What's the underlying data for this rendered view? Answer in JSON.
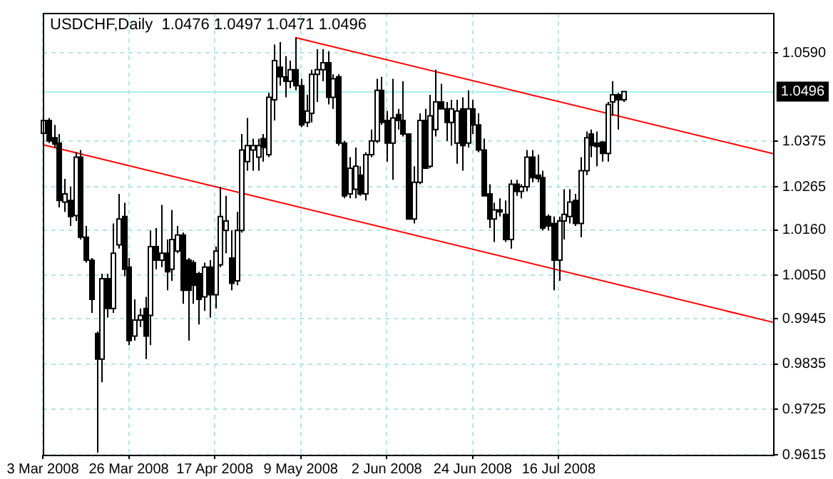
{
  "chart_data": {
    "type": "candlestick",
    "title": "USDCHF,Daily  1.0476 1.0497 1.0471 1.0496",
    "categories": [
      "3 Mar 2008",
      null,
      null,
      null,
      null,
      null,
      null,
      null,
      null,
      null,
      null,
      null,
      null,
      null,
      null,
      null,
      "26 Mar 2008",
      null,
      null,
      null,
      null,
      null,
      null,
      null,
      null,
      null,
      null,
      null,
      null,
      null,
      null,
      null,
      "17 Apr 2008",
      null,
      null,
      null,
      null,
      null,
      null,
      null,
      null,
      null,
      null,
      null,
      null,
      null,
      null,
      null,
      "9 May 2008",
      null,
      null,
      null,
      null,
      null,
      null,
      null,
      null,
      null,
      null,
      null,
      null,
      null,
      null,
      null,
      "2 Jun 2008",
      null,
      null,
      null,
      null,
      null,
      null,
      null,
      null,
      null,
      null,
      null,
      null,
      null,
      null,
      null,
      "24 Jun 2008",
      null,
      null,
      null,
      null,
      null,
      null,
      null,
      null,
      null,
      null,
      null,
      null,
      null,
      null,
      null,
      "16 Jul 2008",
      null,
      null,
      null,
      null,
      null,
      null,
      null,
      null,
      null,
      null,
      null,
      null,
      null,
      null,
      null,
      null,
      null,
      null,
      null,
      null,
      null,
      null,
      null,
      null,
      null,
      null,
      null,
      null,
      null,
      null,
      null,
      null,
      null,
      null,
      null,
      null,
      null,
      null,
      null,
      null
    ],
    "ohlc": [
      [
        1.0395,
        1.046,
        1.031,
        1.0426
      ],
      [
        1.0426,
        1.0432,
        1.0371,
        1.0376
      ],
      [
        1.0384,
        1.0415,
        1.036,
        1.0369
      ],
      [
        1.0371,
        1.0393,
        1.0215,
        1.0232
      ],
      [
        1.0228,
        1.0284,
        1.0204,
        1.0248
      ],
      [
        1.0232,
        1.0265,
        1.017,
        1.0193
      ],
      [
        1.0195,
        1.0349,
        1.0182,
        1.0337
      ],
      [
        1.0337,
        1.0354,
        1.0137,
        1.0143
      ],
      [
        1.0143,
        1.017,
        1.0081,
        1.0087
      ],
      [
        1.0087,
        1.0092,
        0.9959,
        0.9992
      ],
      [
        0.9909,
        0.9914,
        0.962,
        0.9847
      ],
      [
        0.9847,
        1.0054,
        0.9791,
        1.0042
      ],
      [
        1.0042,
        1.0054,
        0.9948,
        0.997
      ],
      [
        0.997,
        1.0176,
        0.9959,
        1.0104
      ],
      [
        1.0124,
        1.0248,
        1.0115,
        1.0187
      ],
      [
        1.0193,
        1.0226,
        1.0048,
        1.0065
      ],
      [
        1.007,
        1.0092,
        0.9881,
        0.9892
      ],
      [
        0.9903,
        0.9992,
        0.9892,
        0.9942
      ],
      [
        0.9942,
        0.997,
        0.9925,
        0.9953
      ],
      [
        0.997,
        0.9998,
        0.9847,
        0.9903
      ],
      [
        0.9953,
        1.0159,
        0.9881,
        1.012
      ],
      [
        1.012,
        1.0165,
        1.0065,
        1.0087
      ],
      [
        1.0087,
        1.0221,
        1.007,
        1.0104
      ],
      [
        1.0104,
        1.0137,
        1.0014,
        1.0059
      ],
      [
        1.0065,
        1.0209,
        1.0037,
        1.0137
      ],
      [
        1.0109,
        1.017,
        1.0104,
        1.0148
      ],
      [
        1.0148,
        1.0154,
        0.9981,
        1.0014
      ],
      [
        1.0087,
        1.0092,
        0.9892,
        1.0014
      ],
      [
        1.0081,
        1.0087,
        0.9981,
        1.0026
      ],
      [
        1.0054,
        1.0059,
        0.9931,
        0.9992
      ],
      [
        0.9998,
        1.0081,
        0.9964,
        1.007
      ],
      [
        1.007,
        1.0087,
        0.9948,
        1.0003
      ],
      [
        1.0003,
        1.012,
        0.997,
        1.0109
      ],
      [
        1.0076,
        1.0265,
        1.007,
        1.0193
      ],
      [
        1.0159,
        1.0243,
        1.0104,
        1.0182
      ],
      [
        1.0092,
        1.0159,
        1.0014,
        1.0031
      ],
      [
        1.0037,
        1.0204,
        1.0026,
        1.0159
      ],
      [
        1.0159,
        1.0393,
        1.0154,
        1.0354
      ],
      [
        1.0326,
        1.0432,
        1.0304,
        1.0365
      ],
      [
        1.0354,
        1.0382,
        1.0304,
        1.0365
      ],
      [
        1.0337,
        1.0382,
        1.0304,
        1.0365
      ],
      [
        1.0382,
        1.0393,
        1.0326,
        1.036
      ],
      [
        1.0343,
        1.0493,
        1.0337,
        1.0482
      ],
      [
        1.0476,
        1.061,
        1.0426,
        1.0571
      ],
      [
        1.0555,
        1.0616,
        1.051,
        1.0532
      ],
      [
        1.0532,
        1.0582,
        1.0482,
        1.0521
      ],
      [
        1.0521,
        1.0571,
        1.0504,
        1.0549
      ],
      [
        1.0549,
        1.0627,
        1.0499,
        1.051
      ],
      [
        1.051,
        1.0527,
        1.041,
        1.0415
      ],
      [
        1.0421,
        1.0488,
        1.041,
        1.0449
      ],
      [
        1.0443,
        1.0549,
        1.0421,
        1.0538
      ],
      [
        1.0538,
        1.0599,
        1.0471,
        1.0549
      ],
      [
        1.0549,
        1.0599,
        1.0521,
        1.0566
      ],
      [
        1.0566,
        1.0594,
        1.0465,
        1.0482
      ],
      [
        1.0482,
        1.0538,
        1.0454,
        1.0527
      ],
      [
        1.0532,
        1.0538,
        1.0365,
        1.0371
      ],
      [
        1.0371,
        1.0376,
        1.0237,
        1.0243
      ],
      [
        1.0248,
        1.0337,
        1.0237,
        1.031
      ],
      [
        1.0259,
        1.036,
        1.0237,
        1.0315
      ],
      [
        1.0293,
        1.0315,
        1.0243,
        1.0248
      ],
      [
        1.0248,
        1.0349,
        1.0232,
        1.0343
      ],
      [
        1.0343,
        1.0404,
        1.0337,
        1.0376
      ],
      [
        1.0376,
        1.0527,
        1.0371,
        1.0499
      ],
      [
        1.0499,
        1.0532,
        1.0415,
        1.0421
      ],
      [
        1.0426,
        1.0449,
        1.0326,
        1.0371
      ],
      [
        1.0371,
        1.0527,
        1.0282,
        1.0432
      ],
      [
        1.044,
        1.0454,
        1.0404,
        1.0426
      ],
      [
        1.0426,
        1.0521,
        1.0387,
        1.0393
      ],
      [
        1.0393,
        1.0393,
        1.0187,
        1.0187
      ],
      [
        1.0187,
        1.0315,
        1.0176,
        1.0276
      ],
      [
        1.0276,
        1.0443,
        1.0271,
        1.0426
      ],
      [
        1.0426,
        1.0454,
        1.031,
        1.031
      ],
      [
        1.0315,
        1.0488,
        1.031,
        1.0437
      ],
      [
        1.0404,
        1.0549,
        1.0387,
        1.0471
      ],
      [
        1.0471,
        1.0515,
        1.0454,
        1.0454
      ],
      [
        1.0454,
        1.0471,
        1.0376,
        1.0421
      ],
      [
        1.0421,
        1.0476,
        1.0365,
        1.0454
      ],
      [
        1.0371,
        1.0476,
        1.0321,
        1.0449
      ],
      [
        1.0454,
        1.0482,
        1.0304,
        1.0365
      ],
      [
        1.0371,
        1.0499,
        1.036,
        1.0454
      ],
      [
        1.0454,
        1.0476,
        1.0393,
        1.0415
      ],
      [
        1.0415,
        1.0443,
        1.0349,
        1.0354
      ],
      [
        1.0354,
        1.0382,
        1.0243,
        1.0243
      ],
      [
        1.0248,
        1.0271,
        1.0165,
        1.0187
      ],
      [
        1.0187,
        1.0226,
        1.0131,
        1.0209
      ],
      [
        1.0209,
        1.0237,
        1.0193,
        1.0204
      ],
      [
        1.0198,
        1.0232,
        1.0131,
        1.0137
      ],
      [
        1.0137,
        1.0282,
        1.0115,
        1.0271
      ],
      [
        1.0271,
        1.0282,
        1.0243,
        1.0254
      ],
      [
        1.0254,
        1.0271,
        1.0237,
        1.0265
      ],
      [
        1.0265,
        1.0354,
        1.0254,
        1.0337
      ],
      [
        1.0337,
        1.0354,
        1.0276,
        1.0287
      ],
      [
        1.0293,
        1.0343,
        1.0276,
        1.0285
      ],
      [
        1.0287,
        1.0304,
        1.0159,
        1.0165
      ],
      [
        1.0193,
        1.0198,
        1.0159,
        1.017
      ],
      [
        1.0176,
        1.0193,
        1.0014,
        1.0087
      ],
      [
        1.0087,
        1.0193,
        1.0037,
        1.0182
      ],
      [
        1.0182,
        1.0259,
        1.0137,
        1.0198
      ],
      [
        1.0193,
        1.0259,
        1.0176,
        1.0228
      ],
      [
        1.0232,
        1.0248,
        1.017,
        1.0176
      ],
      [
        1.0176,
        1.0337,
        1.0143,
        1.0304
      ],
      [
        1.0304,
        1.0399,
        1.0293,
        1.0384
      ],
      [
        1.0393,
        1.0404,
        1.0337,
        1.0365
      ],
      [
        1.0371,
        1.0399,
        1.0315,
        1.0363
      ],
      [
        1.0373,
        1.0376,
        1.0326,
        1.0346
      ],
      [
        1.0346,
        1.0471,
        1.0326,
        1.0465
      ],
      [
        1.0471,
        1.0521,
        1.0437,
        1.0488
      ],
      [
        1.0488,
        1.0493,
        1.0404,
        1.0476
      ],
      [
        1.0476,
        1.0497,
        1.0471,
        1.0496
      ],
      null,
      null,
      null,
      null,
      null,
      null,
      null,
      null,
      null,
      null,
      null,
      null,
      null,
      null,
      null,
      null,
      null,
      null,
      null,
      null,
      null,
      null,
      null,
      null,
      null,
      null,
      null,
      null
    ],
    "series": [
      {
        "type": "line",
        "color": "#ff0000",
        "values": [
          null,
          null,
          null,
          null,
          null,
          null,
          null,
          null,
          null,
          null,
          null,
          null,
          null,
          null,
          null,
          null,
          null,
          null,
          null,
          null,
          null,
          null,
          null,
          null,
          null,
          null,
          null,
          null,
          null,
          null,
          null,
          null,
          null,
          null,
          null,
          null,
          null,
          null,
          null,
          null,
          null,
          null,
          null,
          null,
          null,
          null,
          null,
          1.0627,
          null,
          null,
          null,
          null,
          null,
          null,
          null,
          null,
          null,
          null,
          null,
          null,
          null,
          null,
          null,
          null,
          null,
          null,
          null,
          null,
          null,
          null,
          null,
          null,
          null,
          null,
          null,
          null,
          null,
          null,
          null,
          null,
          null,
          null,
          null,
          null,
          null,
          null,
          null,
          null,
          null,
          null,
          null,
          null,
          null,
          null,
          null,
          null,
          null,
          null,
          null,
          null,
          null,
          null,
          null,
          null,
          null,
          null,
          null,
          null,
          null,
          null,
          null,
          null,
          null,
          null,
          null,
          null,
          null,
          null,
          null,
          null,
          null,
          null,
          null,
          null,
          null,
          null,
          null,
          null,
          null,
          null,
          null,
          null,
          null,
          null,
          null,
          null,
          1.0345
        ]
      },
      {
        "type": "line",
        "color": "#ff0000",
        "values": [
          1.0367,
          null,
          null,
          null,
          null,
          null,
          null,
          null,
          null,
          null,
          null,
          null,
          null,
          null,
          null,
          null,
          null,
          null,
          null,
          null,
          null,
          null,
          null,
          null,
          null,
          null,
          null,
          null,
          null,
          null,
          null,
          null,
          null,
          null,
          null,
          null,
          null,
          null,
          null,
          null,
          null,
          null,
          null,
          null,
          null,
          null,
          null,
          null,
          null,
          null,
          null,
          null,
          null,
          null,
          null,
          null,
          null,
          null,
          null,
          null,
          null,
          null,
          null,
          null,
          null,
          null,
          null,
          null,
          null,
          null,
          null,
          null,
          null,
          null,
          null,
          null,
          null,
          null,
          null,
          null,
          null,
          null,
          null,
          null,
          null,
          null,
          null,
          null,
          null,
          null,
          null,
          null,
          null,
          null,
          null,
          null,
          null,
          null,
          null,
          null,
          null,
          null,
          null,
          null,
          null,
          null,
          null,
          null,
          null,
          null,
          null,
          null,
          null,
          null,
          null,
          null,
          null,
          null,
          null,
          null,
          null,
          null,
          null,
          null,
          null,
          null,
          null,
          null,
          null,
          null,
          null,
          null,
          null,
          null,
          null,
          null,
          0.9936
        ]
      }
    ],
    "ylim": [
      0.9615,
      1.0687
    ],
    "yticks": [
      0.9615,
      0.9725,
      0.9835,
      0.9945,
      {
        "value": 1.005,
        "label": "1.0050"
      },
      {
        "value": 1.016,
        "label": "1.0160"
      },
      1.0265,
      1.0375,
      {
        "value": 1.059,
        "label": "1.0590"
      }
    ],
    "ref_lines": [
      {
        "axis": "y",
        "value": 1.0496,
        "label": "1.0496",
        "color": "#a8f0f0"
      }
    ],
    "grid": true
  }
}
